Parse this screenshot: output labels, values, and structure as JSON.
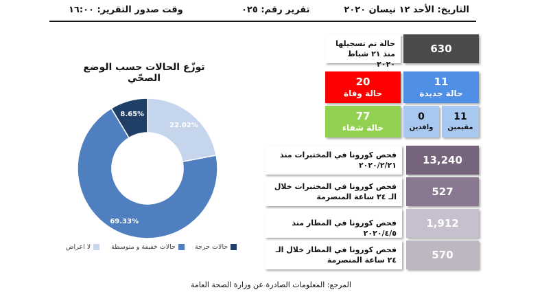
{
  "header": {
    "date": "التاريخ: الأحد ١٢ نيسان ٢٠٢٠",
    "report_number": "تقرير رقم: ٠٢٥",
    "report_time": "وقت صدور التقرير: ١٦:٠٠"
  },
  "chart_title": "توزّع الحالات حسب الوضع الصحّي",
  "chart_data": {
    "type": "pie",
    "categories": [
      "لا اعراض",
      "حالات خفيفة و متوسطة",
      "حالات حرجة"
    ],
    "values": [
      22.02,
      69.33,
      8.65
    ],
    "labels": [
      "22.02%",
      "69.33%",
      "8.65%"
    ],
    "colors": [
      "#c5d6ec",
      "#4f7fbf",
      "#1f3f66"
    ],
    "donut": true,
    "legend_position": "bottom"
  },
  "legend": [
    "حالات حرجة",
    "حالات خفيفة و متوسطة",
    "لا اعراض"
  ],
  "stats": {
    "total_label": "حالة تم تسجيلها منذ ٢١ شباط ٢٠٢٠",
    "total_value": "630",
    "deaths_value": "20",
    "deaths_label": "حالة وفاة",
    "new_value": "11",
    "new_label": "حالة جديدة",
    "recovered_value": "77",
    "recovered_label": "حالة شفاء",
    "residents_value": "11",
    "residents_label": "مقيمين",
    "arrivals_value": "0",
    "arrivals_label": "وافدين",
    "lab_total_label": "فحص كورونا في المختبرات منذ ٢٠٢٠/٢/٢١",
    "lab_total_value": "13,240",
    "lab_24h_label": "فحص كورونا في المختبرات خلال الـ ٢٤ ساعة المنصرمة",
    "lab_24h_value": "527",
    "airport_total_label": "فحص كورونا في المطار منذ ٢٠٢٠/٤/٥",
    "airport_total_value": "1,912",
    "airport_24h_label": "فحص كورونا في المطار خلال الـ ٢٤ ساعة المنصرمة",
    "airport_24h_value": "570"
  },
  "colors": {
    "dark_gray": "#4a4a4a",
    "red": "#ff0000",
    "blue": "#4f8fe6",
    "green": "#92d050",
    "light_blue": "#a8c8f0",
    "purple_dark": "#76647c",
    "purple_mid": "#8a7890",
    "purple_light": "#c5bfce",
    "gray_light": "#bdb7c2"
  },
  "footnote": "المرجع: المعلومات الصادرة عن وزارة الصحة العامة"
}
